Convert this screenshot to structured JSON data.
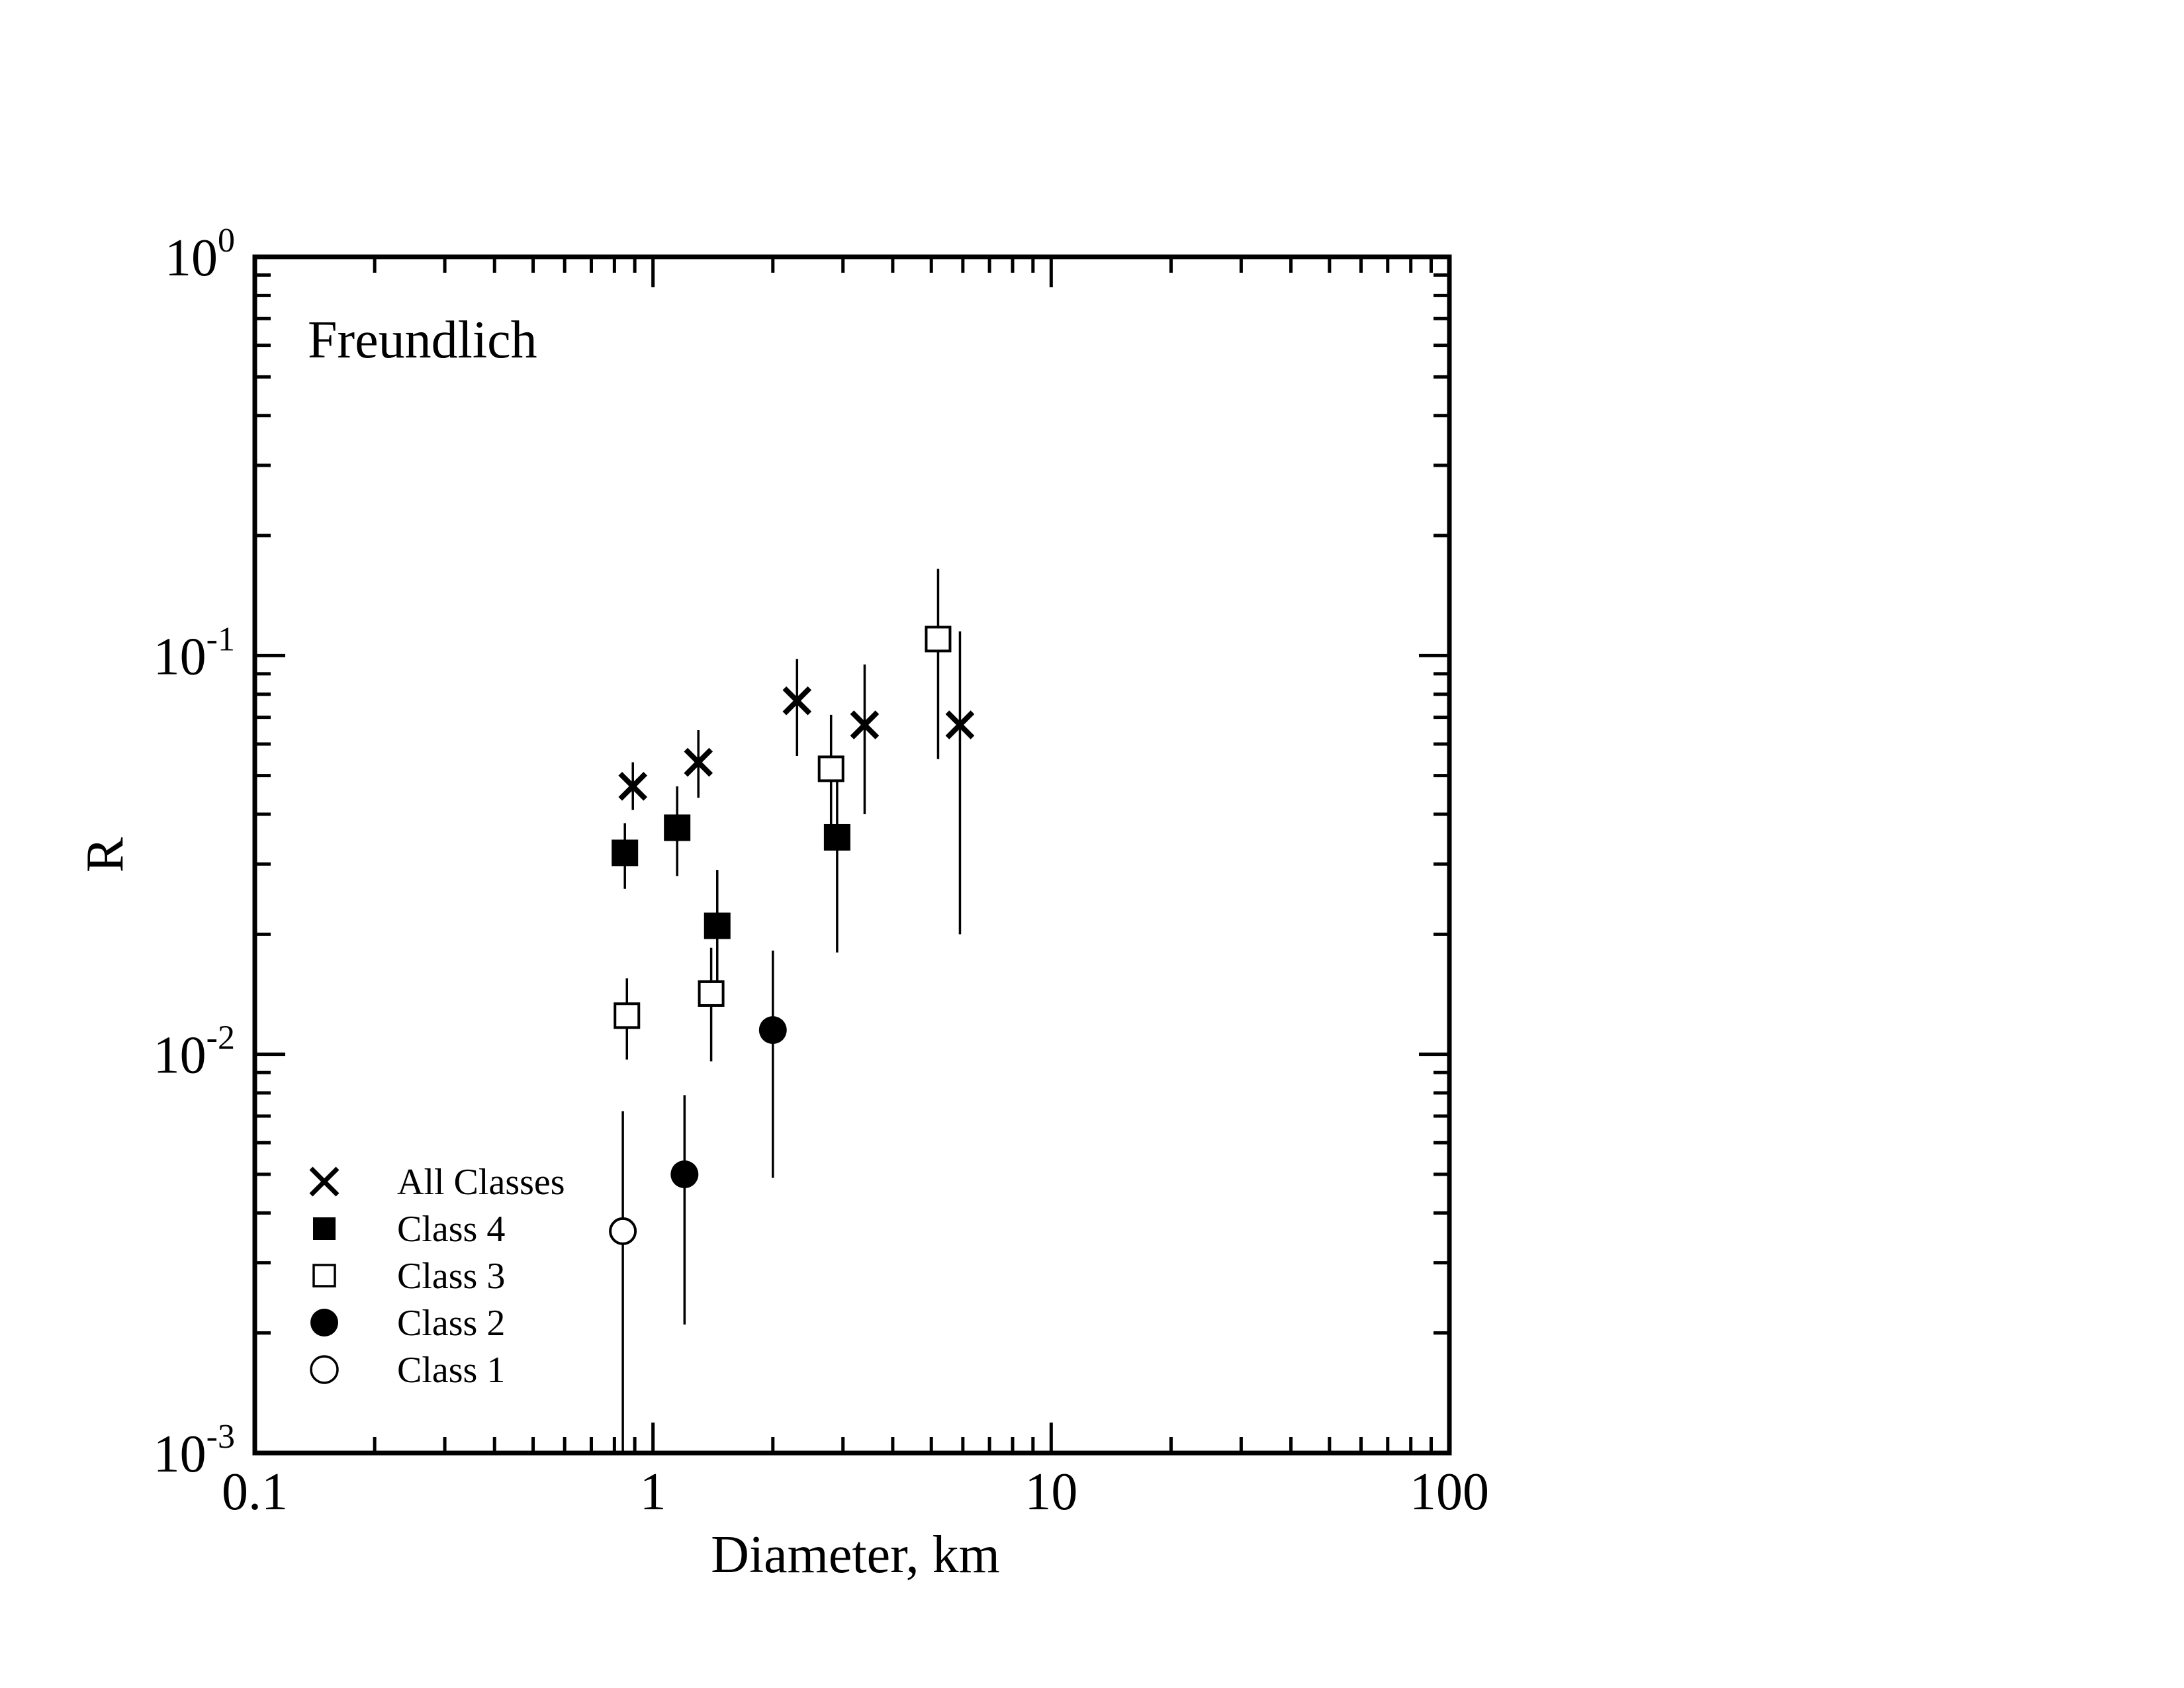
{
  "chart_data": {
    "type": "scatter",
    "annotation": "Freundlich",
    "xlabel": "Diameter, km",
    "ylabel": "R",
    "xscale": "log",
    "yscale": "log",
    "xlim": [
      0.1,
      100
    ],
    "ylim": [
      0.001,
      1
    ],
    "x_tick_labels": [
      {
        "value": 0.1,
        "label": "0.1"
      },
      {
        "value": 1,
        "label": "1"
      },
      {
        "value": 10,
        "label": "10"
      },
      {
        "value": 100,
        "label": "100"
      }
    ],
    "y_tick_labels": [
      {
        "value": 0.001,
        "base": "10",
        "exp": "-3"
      },
      {
        "value": 0.01,
        "base": "10",
        "exp": "-2"
      },
      {
        "value": 0.1,
        "base": "10",
        "exp": "-1"
      },
      {
        "value": 1,
        "base": "10",
        "exp": "0"
      }
    ],
    "grid": false,
    "legend_position": "bottom-left",
    "series": [
      {
        "name": "All Classes",
        "marker": "x",
        "points": [
          {
            "x": 0.89,
            "y": 0.047,
            "ylo": 0.041,
            "yhi": 0.054
          },
          {
            "x": 1.3,
            "y": 0.054,
            "ylo": 0.044,
            "yhi": 0.065
          },
          {
            "x": 2.3,
            "y": 0.077,
            "ylo": 0.056,
            "yhi": 0.098
          },
          {
            "x": 3.4,
            "y": 0.067,
            "ylo": 0.04,
            "yhi": 0.095
          },
          {
            "x": 5.9,
            "y": 0.067,
            "ylo": 0.02,
            "yhi": 0.115
          }
        ]
      },
      {
        "name": "Class 4",
        "marker": "square-filled",
        "points": [
          {
            "x": 0.85,
            "y": 0.032,
            "ylo": 0.026,
            "yhi": 0.038
          },
          {
            "x": 1.15,
            "y": 0.037,
            "ylo": 0.028,
            "yhi": 0.047
          },
          {
            "x": 1.45,
            "y": 0.021,
            "ylo": 0.014,
            "yhi": 0.029
          },
          {
            "x": 2.9,
            "y": 0.035,
            "ylo": 0.018,
            "yhi": 0.052
          }
        ]
      },
      {
        "name": "Class 3",
        "marker": "square-open",
        "points": [
          {
            "x": 0.86,
            "y": 0.0125,
            "ylo": 0.0097,
            "yhi": 0.0155
          },
          {
            "x": 1.4,
            "y": 0.0142,
            "ylo": 0.0096,
            "yhi": 0.0185
          },
          {
            "x": 2.8,
            "y": 0.052,
            "ylo": 0.033,
            "yhi": 0.071
          },
          {
            "x": 5.2,
            "y": 0.11,
            "ylo": 0.055,
            "yhi": 0.165
          }
        ]
      },
      {
        "name": "Class 2",
        "marker": "circle-filled",
        "points": [
          {
            "x": 1.2,
            "y": 0.005,
            "ylo": 0.0021,
            "yhi": 0.0079
          },
          {
            "x": 2.0,
            "y": 0.0115,
            "ylo": 0.0049,
            "yhi": 0.0182
          }
        ]
      },
      {
        "name": "Class 1",
        "marker": "circle-open",
        "points": [
          {
            "x": 0.84,
            "y": 0.0036,
            "ylo": 0.001,
            "yhi": 0.0072
          }
        ]
      }
    ]
  }
}
